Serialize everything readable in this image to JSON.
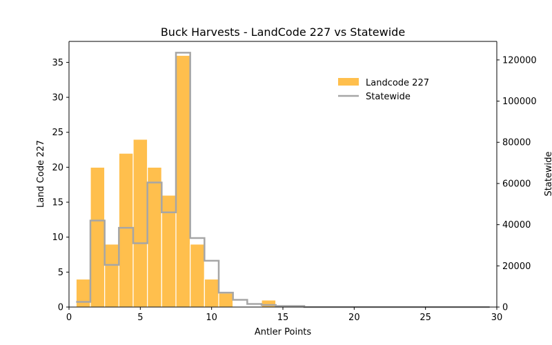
{
  "chart_data": {
    "type": "bar",
    "title": "Buck Harvests - LandCode 227 vs Statewide",
    "xlabel": "Antler Points",
    "ylabel": "Land Code 227",
    "y2label": "Statewide",
    "xlim": [
      0,
      30
    ],
    "ylim": [
      0,
      38
    ],
    "y2lim": [
      0,
      129000
    ],
    "xticks": [
      0,
      5,
      10,
      15,
      20,
      25,
      30
    ],
    "yticks": [
      0,
      5,
      10,
      15,
      20,
      25,
      30,
      35
    ],
    "y2ticks": [
      0,
      20000,
      40000,
      60000,
      80000,
      100000,
      120000
    ],
    "grid": false,
    "legend_position": "upper-right",
    "series": [
      {
        "name": "Landcode 227",
        "kind": "bar",
        "axis": "left",
        "color": "#ffbf4d",
        "x": [
          1,
          2,
          3,
          4,
          5,
          6,
          7,
          8,
          9,
          10,
          11,
          12,
          13,
          14,
          15
        ],
        "values": [
          4,
          20,
          9,
          22,
          24,
          20,
          16,
          36,
          9,
          4,
          2,
          0,
          0,
          1,
          0
        ]
      },
      {
        "name": "Statewide",
        "kind": "step",
        "axis": "right",
        "color": "#a6a6a6",
        "x": [
          1,
          2,
          3,
          4,
          5,
          6,
          7,
          8,
          9,
          10,
          11,
          12,
          13,
          14,
          15,
          16,
          17,
          18,
          19,
          20,
          21,
          22,
          23,
          24,
          25,
          26,
          27,
          28,
          29
        ],
        "values": [
          2500,
          42000,
          20500,
          38500,
          31000,
          60500,
          46000,
          123500,
          33500,
          22500,
          7000,
          3500,
          1500,
          1000,
          500,
          500,
          0,
          0,
          0,
          0,
          0,
          0,
          0,
          0,
          0,
          0,
          0,
          0,
          0
        ]
      }
    ]
  }
}
